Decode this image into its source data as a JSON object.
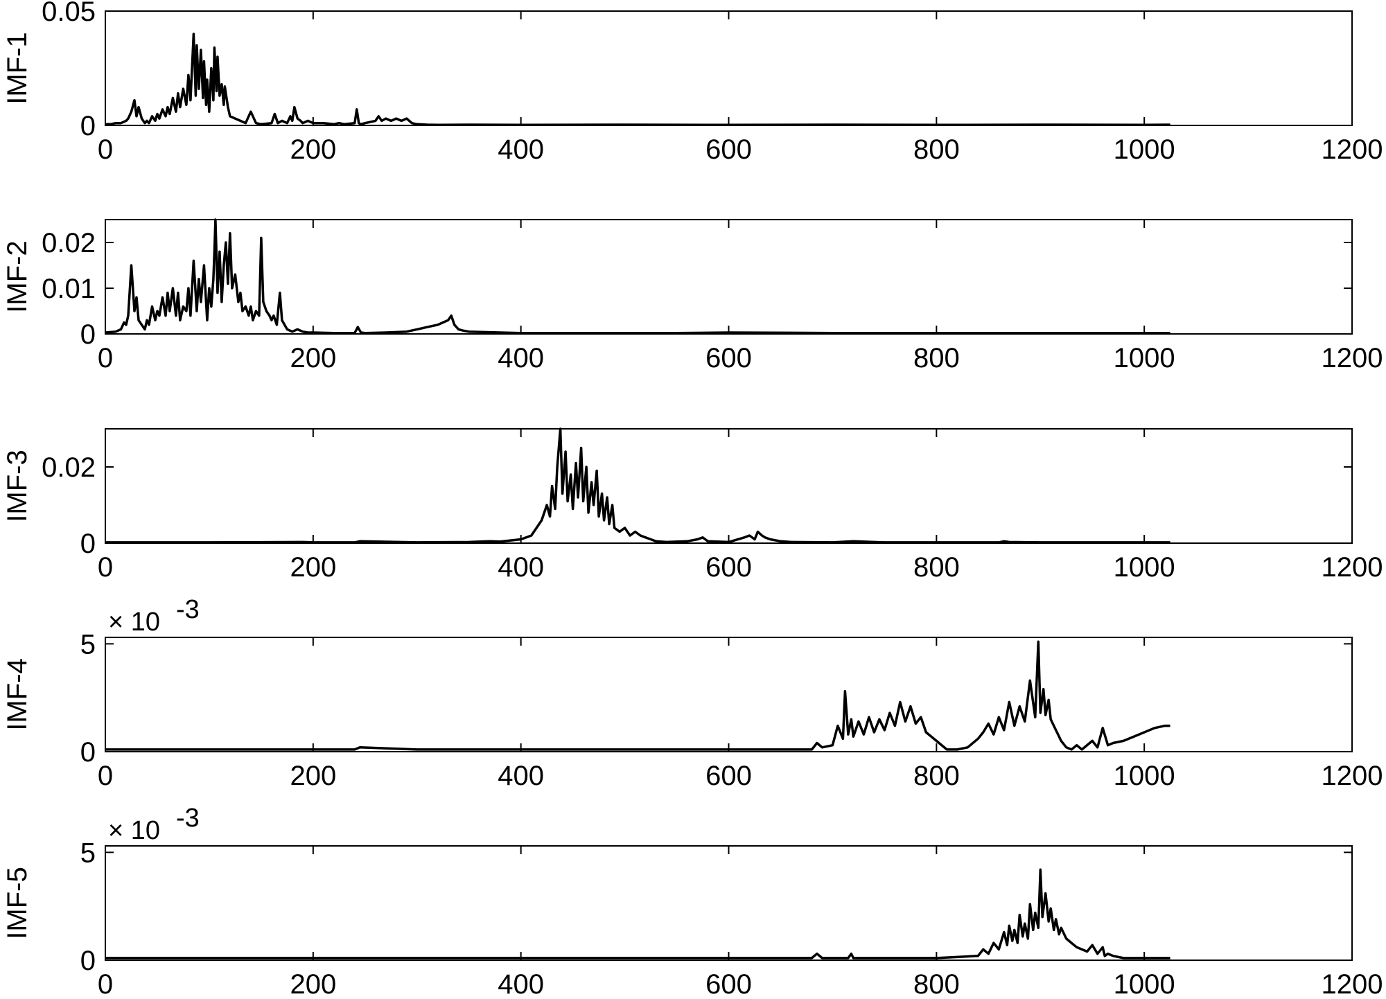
{
  "chart_data": [
    {
      "type": "line",
      "ylabel": "IMF-1",
      "xlim": [
        0,
        1200
      ],
      "ylim": [
        0,
        0.05
      ],
      "x_ticks": [
        "0",
        "200",
        "400",
        "600",
        "800",
        "1000",
        "1200"
      ],
      "y_ticks": [
        "0",
        "0.05"
      ],
      "y_tick_values": [
        0,
        0.05
      ],
      "exponent_label": "",
      "grid": false,
      "series": [
        {
          "x": [
            0,
            5,
            10,
            15,
            20,
            22,
            25,
            28,
            30,
            32,
            35,
            38,
            40,
            42,
            45,
            48,
            50,
            52,
            55,
            58,
            60,
            62,
            65,
            68,
            70,
            72,
            75,
            78,
            80,
            82,
            85,
            87,
            88,
            90,
            92,
            94,
            95,
            97,
            98,
            100,
            102,
            104,
            105,
            107,
            108,
            110,
            112,
            114,
            115,
            118,
            120,
            125,
            130,
            135,
            140,
            145,
            150,
            160,
            163,
            166,
            170,
            175,
            178,
            180,
            182,
            185,
            188,
            190,
            195,
            200,
            210,
            220,
            225,
            230,
            240,
            242,
            244,
            246,
            250,
            260,
            263,
            266,
            270,
            275,
            280,
            285,
            290,
            295,
            300,
            310,
            320,
            350,
            400,
            500,
            600,
            700,
            800,
            900,
            1000,
            1025
          ],
          "y": [
            0.0005,
            0.0005,
            0.001,
            0.001,
            0.002,
            0.003,
            0.006,
            0.011,
            0.004,
            0.008,
            0.003,
            0.001,
            0.002,
            0.001,
            0.004,
            0.002,
            0.005,
            0.003,
            0.007,
            0.004,
            0.008,
            0.005,
            0.012,
            0.006,
            0.014,
            0.008,
            0.016,
            0.009,
            0.022,
            0.011,
            0.04,
            0.013,
            0.035,
            0.016,
            0.033,
            0.012,
            0.028,
            0.009,
            0.02,
            0.006,
            0.025,
            0.011,
            0.034,
            0.015,
            0.03,
            0.013,
            0.018,
            0.009,
            0.017,
            0.008,
            0.004,
            0.003,
            0.002,
            0.001,
            0.006,
            0.001,
            0.0005,
            0.001,
            0.005,
            0.001,
            0.002,
            0.001,
            0.004,
            0.002,
            0.008,
            0.003,
            0.002,
            0.001,
            0.002,
            0.001,
            0.001,
            0.0005,
            0.001,
            0.0005,
            0.001,
            0.007,
            0.001,
            0.0005,
            0.001,
            0.002,
            0.004,
            0.002,
            0.003,
            0.002,
            0.003,
            0.002,
            0.003,
            0.001,
            0.0005,
            0.0003,
            0.0002,
            0.0003,
            0.0002,
            0.0003,
            0.0002,
            0.0003,
            0.0002,
            0.0003,
            0.0002,
            0.0003
          ]
        }
      ]
    },
    {
      "type": "line",
      "ylabel": "IMF-2",
      "xlim": [
        0,
        1200
      ],
      "ylim": [
        0,
        0.025
      ],
      "x_ticks": [
        "0",
        "200",
        "400",
        "600",
        "800",
        "1000",
        "1200"
      ],
      "y_ticks": [
        "0",
        "0.01",
        "0.02"
      ],
      "y_tick_values": [
        0,
        0.01,
        0.02
      ],
      "exponent_label": "",
      "grid": false,
      "series": [
        {
          "x": [
            0,
            10,
            15,
            18,
            20,
            22,
            25,
            28,
            30,
            32,
            35,
            38,
            40,
            42,
            45,
            48,
            50,
            52,
            55,
            58,
            60,
            62,
            65,
            68,
            70,
            72,
            75,
            78,
            80,
            82,
            85,
            88,
            90,
            92,
            95,
            98,
            100,
            102,
            104,
            105,
            106,
            108,
            110,
            112,
            114,
            116,
            118,
            120,
            122,
            125,
            128,
            130,
            132,
            135,
            138,
            140,
            142,
            145,
            148,
            150,
            152,
            155,
            158,
            160,
            162,
            165,
            168,
            170,
            175,
            180,
            185,
            190,
            195,
            200,
            220,
            240,
            243,
            246,
            250,
            270,
            290,
            300,
            310,
            320,
            325,
            330,
            333,
            336,
            340,
            345,
            350,
            380,
            400,
            450,
            500,
            550,
            600,
            700,
            800,
            900,
            1000,
            1025
          ],
          "y": [
            0.0003,
            0.0005,
            0.001,
            0.0025,
            0.002,
            0.004,
            0.015,
            0.005,
            0.008,
            0.003,
            0.002,
            0.001,
            0.003,
            0.002,
            0.006,
            0.003,
            0.005,
            0.004,
            0.008,
            0.004,
            0.009,
            0.005,
            0.01,
            0.004,
            0.009,
            0.003,
            0.006,
            0.005,
            0.01,
            0.004,
            0.016,
            0.005,
            0.012,
            0.007,
            0.015,
            0.003,
            0.01,
            0.006,
            0.012,
            0.018,
            0.025,
            0.009,
            0.018,
            0.007,
            0.015,
            0.02,
            0.011,
            0.022,
            0.01,
            0.013,
            0.007,
            0.009,
            0.005,
            0.006,
            0.004,
            0.006,
            0.003,
            0.005,
            0.004,
            0.021,
            0.007,
            0.005,
            0.004,
            0.003,
            0.004,
            0.002,
            0.009,
            0.003,
            0.001,
            0.0005,
            0.001,
            0.0005,
            0.0003,
            0.0003,
            0.0002,
            0.0002,
            0.0015,
            0.0003,
            0.0002,
            0.0003,
            0.0005,
            0.001,
            0.0015,
            0.002,
            0.0025,
            0.003,
            0.004,
            0.002,
            0.001,
            0.0007,
            0.0005,
            0.0003,
            0.0002,
            0.0002,
            0.0002,
            0.0002,
            0.0003,
            0.0002,
            0.0002,
            0.0002,
            0.0002,
            0.0002
          ]
        }
      ]
    },
    {
      "type": "line",
      "ylabel": "IMF-3",
      "xlim": [
        0,
        1200
      ],
      "ylim": [
        0,
        0.03
      ],
      "x_ticks": [
        "0",
        "200",
        "400",
        "600",
        "800",
        "1000",
        "1200"
      ],
      "y_ticks": [
        "0",
        "0.02"
      ],
      "y_tick_values": [
        0,
        0.02
      ],
      "exponent_label": "",
      "grid": false,
      "series": [
        {
          "x": [
            0,
            100,
            190,
            200,
            240,
            245,
            300,
            350,
            370,
            380,
            400,
            410,
            415,
            420,
            425,
            428,
            430,
            433,
            435,
            438,
            440,
            443,
            445,
            448,
            450,
            453,
            455,
            458,
            460,
            463,
            465,
            468,
            470,
            473,
            475,
            478,
            480,
            483,
            485,
            488,
            490,
            495,
            500,
            505,
            510,
            515,
            520,
            525,
            530,
            540,
            560,
            570,
            575,
            580,
            600,
            615,
            620,
            625,
            628,
            632,
            635,
            640,
            650,
            660,
            700,
            720,
            750,
            800,
            860,
            865,
            870,
            900,
            950,
            1000,
            1025
          ],
          "y": [
            0.0002,
            0.0002,
            0.0003,
            0.0002,
            0.0002,
            0.0005,
            0.0002,
            0.0003,
            0.0005,
            0.0004,
            0.001,
            0.002,
            0.004,
            0.006,
            0.01,
            0.007,
            0.015,
            0.009,
            0.02,
            0.03,
            0.013,
            0.024,
            0.011,
            0.018,
            0.009,
            0.021,
            0.012,
            0.025,
            0.011,
            0.02,
            0.008,
            0.016,
            0.01,
            0.019,
            0.007,
            0.013,
            0.006,
            0.012,
            0.005,
            0.01,
            0.004,
            0.003,
            0.004,
            0.002,
            0.003,
            0.002,
            0.0015,
            0.001,
            0.0005,
            0.0003,
            0.0005,
            0.001,
            0.0015,
            0.0005,
            0.0003,
            0.0015,
            0.002,
            0.001,
            0.003,
            0.002,
            0.0015,
            0.001,
            0.0005,
            0.0003,
            0.0002,
            0.0005,
            0.0002,
            0.0002,
            0.0002,
            0.0005,
            0.0003,
            0.0002,
            0.0002,
            0.0002,
            0.0002
          ]
        }
      ]
    },
    {
      "type": "line",
      "ylabel": "IMF-4",
      "xlim": [
        0,
        1200
      ],
      "ylim": [
        0,
        5.3
      ],
      "x_ticks": [
        "0",
        "200",
        "400",
        "600",
        "800",
        "1000",
        "1200"
      ],
      "y_ticks": [
        "0",
        "5"
      ],
      "y_tick_values": [
        0,
        5
      ],
      "exponent_label": "× 10",
      "exponent_power": "-3",
      "grid": false,
      "series": [
        {
          "x": [
            0,
            100,
            200,
            240,
            245,
            300,
            400,
            500,
            600,
            650,
            680,
            685,
            690,
            700,
            705,
            710,
            712,
            715,
            718,
            720,
            725,
            730,
            735,
            740,
            745,
            750,
            755,
            760,
            765,
            770,
            775,
            780,
            785,
            790,
            800,
            810,
            820,
            830,
            840,
            845,
            850,
            855,
            860,
            865,
            870,
            875,
            880,
            885,
            890,
            895,
            898,
            900,
            903,
            905,
            908,
            910,
            915,
            920,
            925,
            930,
            935,
            940,
            950,
            955,
            960,
            965,
            970,
            980,
            990,
            1000,
            1010,
            1020,
            1025
          ],
          "y": [
            0.1,
            0.1,
            0.1,
            0.1,
            0.2,
            0.1,
            0.1,
            0.1,
            0.1,
            0.1,
            0.1,
            0.4,
            0.2,
            0.3,
            1.2,
            0.6,
            2.8,
            0.8,
            1.5,
            0.7,
            1.4,
            0.8,
            1.6,
            0.9,
            1.5,
            1.0,
            1.8,
            1.2,
            2.3,
            1.4,
            2.1,
            1.3,
            1.6,
            0.9,
            0.5,
            0.1,
            0.1,
            0.2,
            0.6,
            0.9,
            1.3,
            0.8,
            1.6,
            1.0,
            2.3,
            1.2,
            2.1,
            1.4,
            3.3,
            1.6,
            5.1,
            1.8,
            2.9,
            1.7,
            2.4,
            1.5,
            1.0,
            0.5,
            0.2,
            0.1,
            0.3,
            0.1,
            0.5,
            0.2,
            1.1,
            0.3,
            0.4,
            0.5,
            0.7,
            0.9,
            1.1,
            1.2,
            1.2
          ]
        }
      ]
    },
    {
      "type": "line",
      "ylabel": "IMF-5",
      "xlim": [
        0,
        1200
      ],
      "ylim": [
        0,
        5.3
      ],
      "x_ticks": [
        "0",
        "200",
        "400",
        "600",
        "800",
        "1000",
        "1200"
      ],
      "y_ticks": [
        "0",
        "5"
      ],
      "y_tick_values": [
        0,
        5
      ],
      "exponent_label": "× 10",
      "exponent_power": "-3",
      "grid": false,
      "series": [
        {
          "x": [
            0,
            100,
            200,
            300,
            400,
            500,
            600,
            680,
            685,
            690,
            715,
            718,
            720,
            800,
            840,
            845,
            850,
            855,
            860,
            865,
            868,
            870,
            873,
            875,
            878,
            880,
            883,
            885,
            888,
            890,
            893,
            895,
            898,
            900,
            902,
            905,
            908,
            910,
            913,
            915,
            918,
            920,
            925,
            930,
            935,
            940,
            945,
            950,
            955,
            960,
            962,
            965,
            970,
            980,
            1000,
            1025
          ],
          "y": [
            0.1,
            0.1,
            0.1,
            0.1,
            0.1,
            0.1,
            0.1,
            0.1,
            0.3,
            0.1,
            0.1,
            0.3,
            0.1,
            0.1,
            0.2,
            0.5,
            0.3,
            0.8,
            0.5,
            1.3,
            0.7,
            1.6,
            0.9,
            1.4,
            0.8,
            2.1,
            1.1,
            1.7,
            1.0,
            2.6,
            1.4,
            2.2,
            1.5,
            4.2,
            2.0,
            3.1,
            1.8,
            2.4,
            1.4,
            1.9,
            1.2,
            1.5,
            1.0,
            0.8,
            0.6,
            0.5,
            0.4,
            0.7,
            0.3,
            0.6,
            0.2,
            0.3,
            0.2,
            0.1,
            0.1,
            0.1
          ]
        }
      ]
    }
  ]
}
